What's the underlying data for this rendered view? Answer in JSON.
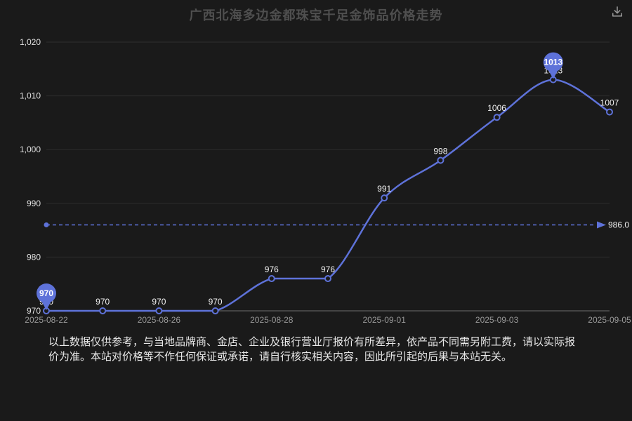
{
  "header": {
    "title": "广西北海多边金都珠宝千足金饰品价格走势"
  },
  "chart_data": {
    "type": "line",
    "title": "广西北海多边金都珠宝千足金饰品价格走势",
    "ylabel": "",
    "xlabel": "",
    "ylim": [
      970,
      1020
    ],
    "grid": true,
    "legend": false,
    "values": [
      970,
      970,
      970,
      970,
      976,
      976,
      991,
      998,
      1006,
      1013,
      1007
    ],
    "point_labels": [
      "970",
      "970",
      "970",
      "970",
      "976",
      "976",
      "991",
      "998",
      "1006",
      "1013",
      "1007"
    ],
    "x_ticks": [
      {
        "index": 0,
        "label": "2025-08-22"
      },
      {
        "index": 2,
        "label": "2025-08-26"
      },
      {
        "index": 4,
        "label": "2025-08-28"
      },
      {
        "index": 6,
        "label": "2025-09-01"
      },
      {
        "index": 8,
        "label": "2025-09-03"
      },
      {
        "index": 10,
        "label": "2025-09-05"
      }
    ],
    "y_ticks": [
      {
        "value": 970,
        "label": "970"
      },
      {
        "value": 980,
        "label": "980"
      },
      {
        "value": 990,
        "label": "990"
      },
      {
        "value": 1000,
        "label": "1,000"
      },
      {
        "value": 1010,
        "label": "1,010"
      },
      {
        "value": 1020,
        "label": "1,020"
      }
    ],
    "average_line": {
      "value": 986.0,
      "label": "986.0"
    },
    "min_marker": {
      "index": 0,
      "value": 970,
      "label": "970"
    },
    "max_marker": {
      "index": 9,
      "value": 1013,
      "label": "1013"
    }
  },
  "colors": {
    "background": "#1a1a1a",
    "line": "#5E72D9",
    "grid": "#2d2d2d",
    "axis": "#6e6e6e",
    "y_label": "#e0e0e0",
    "x_label": "#999999",
    "title": "#4f4f4f",
    "point_label": "#f2f2f2",
    "pin_label": "#ffffff",
    "footer": "#e8e8e8",
    "icon": "#999999"
  },
  "footer": {
    "disclaimer": "以上数据仅供参考，与当地品牌商、金店、企业及银行营业厅报价有所差异，依产品不同需另附工费，请以实际报价为准。本站对价格等不作任何保证或承诺，请自行核实相关内容，因此所引起的后果与本站无关。"
  }
}
